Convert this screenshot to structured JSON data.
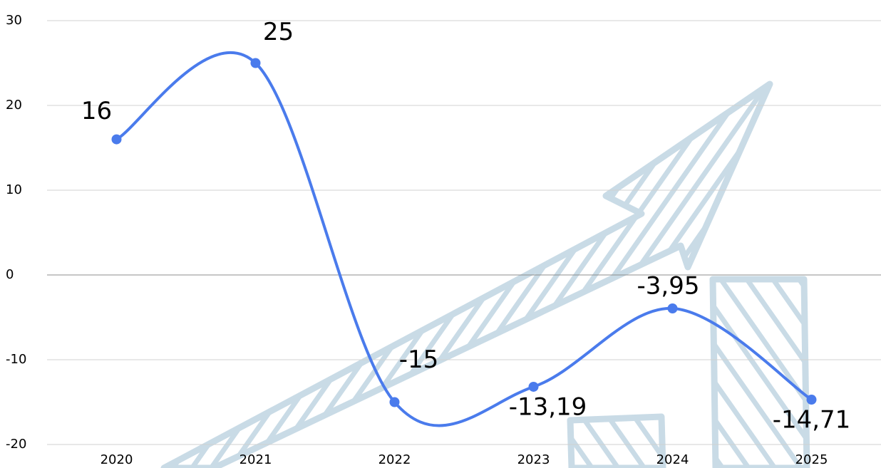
{
  "chart_data": {
    "type": "line",
    "categories": [
      "2020",
      "2021",
      "2022",
      "2023",
      "2024",
      "2025"
    ],
    "values": [
      16,
      25,
      -15,
      -13.19,
      -3.95,
      -14.71
    ],
    "value_labels": [
      "16",
      "25",
      "-15",
      "-13,19",
      "-3,95",
      "-14,71"
    ],
    "color": "#4a7bec",
    "ylim": [
      -20,
      30
    ],
    "yticks": [
      -20,
      -10,
      0,
      10,
      20,
      30
    ],
    "grid": true
  }
}
